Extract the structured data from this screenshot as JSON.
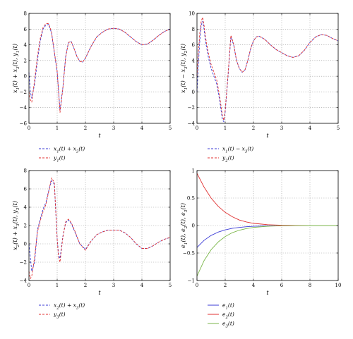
{
  "chart_data": [
    {
      "type": "line",
      "xlabel": "t",
      "ylabel": "x₁(t) + x₃(t), y₁(t)",
      "xlim": [
        0,
        5
      ],
      "ylim": [
        -6,
        8
      ],
      "xticks": [
        "0",
        "1",
        "2",
        "3",
        "4",
        "5"
      ],
      "yticks": [
        "−6",
        "−4",
        "−2",
        "0",
        "2",
        "4",
        "6",
        "8"
      ],
      "grid": true,
      "legend_position": "below",
      "series": [
        {
          "name": "x₁(t) + x₃(t)",
          "color": "#3b3bd6",
          "dash": "dashed",
          "x": [
            0,
            0.05,
            0.1,
            0.2,
            0.3,
            0.4,
            0.5,
            0.6,
            0.7,
            0.8,
            0.9,
            1.0,
            1.1,
            1.2,
            1.3,
            1.4,
            1.5,
            1.6,
            1.7,
            1.8,
            1.9,
            2.0,
            2.2,
            2.4,
            2.6,
            2.8,
            3.0,
            3.2,
            3.4,
            3.6,
            3.8,
            4.0,
            4.2,
            4.4,
            4.6,
            4.8,
            5.0
          ],
          "y": [
            0.5,
            -2.0,
            -2.8,
            -1.0,
            2.0,
            4.5,
            6.0,
            6.5,
            6.6,
            5.5,
            3.0,
            0.5,
            -4.3,
            -1.5,
            2.5,
            4.3,
            4.4,
            3.5,
            2.5,
            1.9,
            1.8,
            2.3,
            3.8,
            5.0,
            5.6,
            6.0,
            6.1,
            6.0,
            5.6,
            5.0,
            4.4,
            4.0,
            4.1,
            4.6,
            5.2,
            5.7,
            6.0
          ]
        },
        {
          "name": "y₁(t)",
          "color": "#e03030",
          "dash": "dashed",
          "x": [
            0,
            0.05,
            0.1,
            0.2,
            0.3,
            0.4,
            0.5,
            0.6,
            0.7,
            0.8,
            0.9,
            1.0,
            1.1,
            1.2,
            1.3,
            1.4,
            1.5,
            1.6,
            1.7,
            1.8,
            1.9,
            2.0,
            2.2,
            2.4,
            2.6,
            2.8,
            3.0,
            3.2,
            3.4,
            3.6,
            3.8,
            4.0,
            4.2,
            4.4,
            4.6,
            4.8,
            5.0
          ],
          "y": [
            -2.0,
            -3.0,
            -3.3,
            -0.5,
            2.5,
            4.8,
            6.2,
            6.7,
            6.7,
            5.6,
            3.1,
            0.6,
            -4.6,
            -1.6,
            2.4,
            4.3,
            4.4,
            3.5,
            2.5,
            1.9,
            1.8,
            2.3,
            3.8,
            5.0,
            5.6,
            6.0,
            6.1,
            6.0,
            5.6,
            5.0,
            4.4,
            4.0,
            4.1,
            4.6,
            5.2,
            5.7,
            6.0
          ]
        }
      ]
    },
    {
      "type": "line",
      "xlabel": "t",
      "ylabel": "x₁(t) − x₃(t), y₂(t)",
      "xlim": [
        0,
        5
      ],
      "ylim": [
        -4,
        10
      ],
      "xticks": [
        "0",
        "1",
        "2",
        "3",
        "4",
        "5"
      ],
      "yticks": [
        "−4",
        "−2",
        "0",
        "2",
        "4",
        "6",
        "8",
        "10"
      ],
      "grid": true,
      "legend_position": "below",
      "series": [
        {
          "name": "x₁(t) − x₃(t)",
          "color": "#3b3bd6",
          "dash": "dashed",
          "x": [
            0,
            0.05,
            0.1,
            0.15,
            0.2,
            0.25,
            0.3,
            0.4,
            0.5,
            0.6,
            0.7,
            0.8,
            0.9,
            0.95,
            1.0,
            1.1,
            1.2,
            1.3,
            1.4,
            1.5,
            1.6,
            1.7,
            1.8,
            1.9,
            2.0,
            2.1,
            2.2,
            2.4,
            2.6,
            2.8,
            3.0,
            3.2,
            3.4,
            3.6,
            3.8,
            4.0,
            4.2,
            4.4,
            4.6,
            4.8,
            5.0
          ],
          "y": [
            0.0,
            3.5,
            6.5,
            8.5,
            9.0,
            8.0,
            6.5,
            4.5,
            3.0,
            2.0,
            1.0,
            -1.0,
            -3.5,
            -3.8,
            -2.5,
            2.0,
            7.0,
            6.0,
            4.0,
            3.0,
            2.5,
            2.8,
            4.0,
            5.5,
            6.5,
            7.0,
            7.1,
            6.7,
            6.0,
            5.4,
            5.0,
            4.6,
            4.4,
            4.6,
            5.3,
            6.3,
            7.0,
            7.3,
            7.2,
            6.8,
            6.5
          ]
        },
        {
          "name": "y₂(t)",
          "color": "#e03030",
          "dash": "dashed",
          "x": [
            0,
            0.05,
            0.1,
            0.15,
            0.2,
            0.25,
            0.3,
            0.4,
            0.5,
            0.6,
            0.7,
            0.8,
            0.9,
            0.95,
            1.0,
            1.1,
            1.2,
            1.3,
            1.4,
            1.5,
            1.6,
            1.7,
            1.8,
            1.9,
            2.0,
            2.1,
            2.2,
            2.4,
            2.6,
            2.8,
            3.0,
            3.2,
            3.4,
            3.6,
            3.8,
            4.0,
            4.2,
            4.4,
            4.6,
            4.8,
            5.0
          ],
          "y": [
            2.0,
            5.0,
            7.5,
            9.0,
            9.5,
            8.5,
            7.0,
            5.0,
            3.5,
            2.5,
            1.5,
            -0.5,
            -3.0,
            -3.6,
            -2.3,
            2.2,
            7.2,
            6.1,
            4.0,
            3.0,
            2.5,
            2.8,
            4.0,
            5.5,
            6.5,
            7.0,
            7.1,
            6.7,
            6.0,
            5.4,
            5.0,
            4.6,
            4.4,
            4.6,
            5.3,
            6.3,
            7.0,
            7.3,
            7.2,
            6.8,
            6.5
          ]
        }
      ]
    },
    {
      "type": "line",
      "xlabel": "t",
      "ylabel": "x₂(t) + x₃(t), y₃(t)",
      "xlim": [
        0,
        5
      ],
      "ylim": [
        -4,
        8
      ],
      "xticks": [
        "0",
        "1",
        "2",
        "3",
        "4",
        "5"
      ],
      "yticks": [
        "−4",
        "−2",
        "0",
        "2",
        "4",
        "6",
        "8"
      ],
      "grid": true,
      "legend_position": "below",
      "series": [
        {
          "name": "x₂(t) + x₃(t)",
          "color": "#3b3bd6",
          "dash": "dashed",
          "x": [
            0,
            0.05,
            0.1,
            0.2,
            0.3,
            0.4,
            0.5,
            0.6,
            0.7,
            0.8,
            0.9,
            1.0,
            1.05,
            1.1,
            1.2,
            1.3,
            1.4,
            1.5,
            1.6,
            1.8,
            2.0,
            2.2,
            2.4,
            2.6,
            2.8,
            3.0,
            3.2,
            3.4,
            3.6,
            3.8,
            4.0,
            4.2,
            4.4,
            4.6,
            4.8,
            5.0
          ],
          "y": [
            0.0,
            -1.5,
            -3.0,
            -2.0,
            1.5,
            2.7,
            3.8,
            4.5,
            5.8,
            6.9,
            6.5,
            0.5,
            -1.2,
            -1.6,
            0.8,
            2.3,
            2.6,
            2.2,
            1.5,
            0.0,
            -0.6,
            0.3,
            1.0,
            1.3,
            1.5,
            1.5,
            1.5,
            1.2,
            0.7,
            0.0,
            -0.5,
            -0.5,
            -0.2,
            0.2,
            0.5,
            0.7
          ]
        },
        {
          "name": "y₃(t)",
          "color": "#e03030",
          "dash": "dashed",
          "x": [
            0,
            0.05,
            0.1,
            0.2,
            0.3,
            0.4,
            0.5,
            0.6,
            0.7,
            0.8,
            0.9,
            1.0,
            1.05,
            1.1,
            1.2,
            1.3,
            1.4,
            1.5,
            1.6,
            1.8,
            2.0,
            2.2,
            2.4,
            2.6,
            2.8,
            3.0,
            3.2,
            3.4,
            3.6,
            3.8,
            4.0,
            4.2,
            4.4,
            4.6,
            4.8,
            5.0
          ],
          "y": [
            -3.0,
            -3.8,
            -3.5,
            -1.5,
            1.3,
            2.5,
            3.5,
            4.3,
            5.7,
            7.2,
            6.7,
            0.5,
            -1.5,
            -2.0,
            0.7,
            2.4,
            2.7,
            2.3,
            1.6,
            0.0,
            -0.7,
            0.3,
            1.0,
            1.3,
            1.5,
            1.5,
            1.5,
            1.2,
            0.7,
            0.0,
            -0.5,
            -0.5,
            -0.2,
            0.2,
            0.5,
            0.7
          ]
        }
      ]
    },
    {
      "type": "line",
      "xlabel": "t",
      "ylabel": "e₁(t), e₂(t), e₃(t)",
      "xlim": [
        0,
        10
      ],
      "ylim": [
        -1,
        1
      ],
      "xticks": [
        "0",
        "2",
        "4",
        "6",
        "8",
        "10"
      ],
      "yticks": [
        "−1",
        "−0.5",
        "0",
        "0.5",
        "1"
      ],
      "grid": true,
      "legend_position": "below",
      "series": [
        {
          "name": "e₁(t)",
          "color": "#3b3bd6",
          "dash": "solid",
          "x": [
            0,
            0.5,
            1,
            1.5,
            2,
            2.5,
            3,
            3.5,
            4,
            5,
            6,
            7,
            8,
            9,
            10
          ],
          "y": [
            -0.4,
            -0.27,
            -0.18,
            -0.12,
            -0.08,
            -0.05,
            -0.035,
            -0.022,
            -0.014,
            -0.006,
            -0.002,
            -0.001,
            0,
            0,
            0
          ]
        },
        {
          "name": "e₂(t)",
          "color": "#e03030",
          "dash": "solid",
          "x": [
            0,
            0.5,
            1,
            1.5,
            2,
            2.5,
            3,
            3.5,
            4,
            5,
            6,
            7,
            8,
            9,
            10
          ],
          "y": [
            0.95,
            0.7,
            0.5,
            0.35,
            0.24,
            0.16,
            0.1,
            0.065,
            0.04,
            0.015,
            0.005,
            0.002,
            0,
            0,
            0
          ]
        },
        {
          "name": "e₃(t)",
          "color": "#7ab648",
          "dash": "solid",
          "x": [
            0,
            0.5,
            1,
            1.5,
            2,
            2.5,
            3,
            3.5,
            4,
            5,
            6,
            7,
            8,
            9,
            10
          ],
          "y": [
            -0.92,
            -0.64,
            -0.44,
            -0.3,
            -0.2,
            -0.13,
            -0.085,
            -0.055,
            -0.035,
            -0.013,
            -0.004,
            -0.001,
            0,
            0,
            0
          ]
        }
      ]
    }
  ]
}
